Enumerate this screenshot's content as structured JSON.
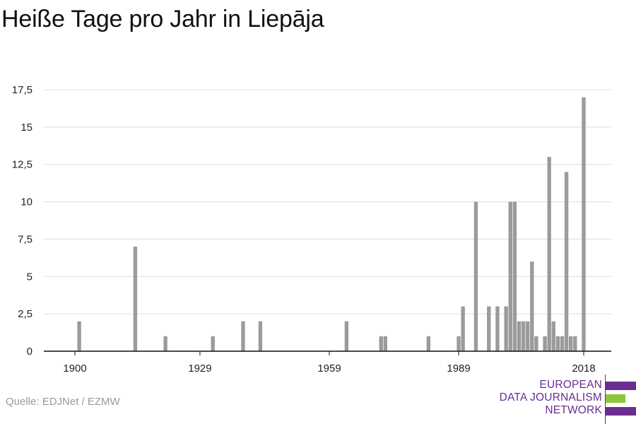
{
  "title": "Heiße Tage pro Jahr in Liepāja",
  "source": "Quelle: EDJNet / EZMW",
  "logo": {
    "lines": [
      "EUROPEAN",
      "DATA JOURNALISM",
      "NETWORK"
    ],
    "colors": {
      "purple": "#6a2c91",
      "green": "#8cc63f"
    }
  },
  "chart_data": {
    "type": "bar",
    "title": "Heiße Tage pro Jahr in Liepāja",
    "xlabel": "",
    "ylabel": "",
    "xlim": [
      1900,
      2018
    ],
    "ylim": [
      0,
      17.5
    ],
    "xticks": [
      1900,
      1929,
      1959,
      1989,
      2018
    ],
    "yticks": [
      0,
      2.5,
      5,
      7.5,
      10,
      12.5,
      15,
      17.5
    ],
    "ytick_labels": [
      "0",
      "2,5",
      "5",
      "7,5",
      "10",
      "12,5",
      "15",
      "17,5"
    ],
    "grid": true,
    "bar_color": "#9b9b9b",
    "x": [
      1900,
      1901,
      1902,
      1903,
      1904,
      1905,
      1906,
      1907,
      1908,
      1909,
      1910,
      1911,
      1912,
      1913,
      1914,
      1915,
      1916,
      1917,
      1918,
      1919,
      1920,
      1921,
      1922,
      1923,
      1924,
      1925,
      1926,
      1927,
      1928,
      1929,
      1930,
      1931,
      1932,
      1933,
      1934,
      1935,
      1936,
      1937,
      1938,
      1939,
      1940,
      1941,
      1942,
      1943,
      1944,
      1945,
      1946,
      1947,
      1948,
      1949,
      1950,
      1951,
      1952,
      1953,
      1954,
      1955,
      1956,
      1957,
      1958,
      1959,
      1960,
      1961,
      1962,
      1963,
      1964,
      1965,
      1966,
      1967,
      1968,
      1969,
      1970,
      1971,
      1972,
      1973,
      1974,
      1975,
      1976,
      1977,
      1978,
      1979,
      1980,
      1981,
      1982,
      1983,
      1984,
      1985,
      1986,
      1987,
      1988,
      1989,
      1990,
      1991,
      1992,
      1993,
      1994,
      1995,
      1996,
      1997,
      1998,
      1999,
      2000,
      2001,
      2002,
      2003,
      2004,
      2005,
      2006,
      2007,
      2008,
      2009,
      2010,
      2011,
      2012,
      2013,
      2014,
      2015,
      2016,
      2017,
      2018
    ],
    "values": [
      0,
      2,
      0,
      0,
      0,
      0,
      0,
      0,
      0,
      0,
      0,
      0,
      0,
      0,
      7,
      0,
      0,
      0,
      0,
      0,
      0,
      1,
      0,
      0,
      0,
      0,
      0,
      0,
      0,
      0,
      0,
      0,
      1,
      0,
      0,
      0,
      0,
      0,
      0,
      2,
      0,
      0,
      0,
      2,
      0,
      0,
      0,
      0,
      0,
      0,
      0,
      0,
      0,
      0,
      0,
      0,
      0,
      0,
      0,
      0,
      0,
      0,
      0,
      2,
      0,
      0,
      0,
      0,
      0,
      0,
      0,
      1,
      1,
      0,
      0,
      0,
      0,
      0,
      0,
      0,
      0,
      0,
      1,
      0,
      0,
      0,
      0,
      0,
      0,
      1,
      3,
      0,
      0,
      10,
      0,
      0,
      3,
      0,
      3,
      0,
      3,
      10,
      10,
      2,
      2,
      2,
      6,
      1,
      0,
      1,
      13,
      2,
      1,
      1,
      12,
      1,
      1,
      0,
      17
    ]
  }
}
